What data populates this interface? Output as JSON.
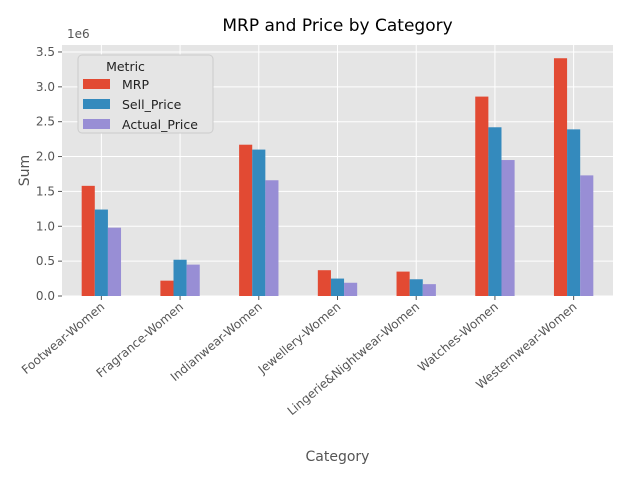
{
  "chart_data": {
    "type": "bar",
    "title": "MRP and Price by Category",
    "xlabel": "Category",
    "ylabel": "Sum",
    "y_multiplier_label": "1e6",
    "y_scale": 1000000,
    "ylim": [
      0,
      3.6
    ],
    "yticks": [
      0.0,
      0.5,
      1.0,
      1.5,
      2.0,
      2.5,
      3.0,
      3.5
    ],
    "ytick_labels": [
      "0.0",
      "0.5",
      "1.0",
      "1.5",
      "2.0",
      "2.5",
      "3.0",
      "3.5"
    ],
    "grid": true,
    "legend_title": "Metric",
    "legend_position": "upper-left",
    "categories": [
      "Footwear-Women",
      "Fragrance-Women",
      "Indianwear-Women",
      "Jewellery-Women",
      "Lingerie&Nightwear-Women",
      "Watches-Women",
      "Westernwear-Women"
    ],
    "series": [
      {
        "name": "MRP",
        "color": "#E24A33",
        "values": [
          1.58,
          0.22,
          2.17,
          0.37,
          0.35,
          2.86,
          3.41
        ]
      },
      {
        "name": "Sell_Price",
        "color": "#348ABD",
        "values": [
          1.24,
          0.52,
          2.1,
          0.25,
          0.24,
          2.42,
          2.39
        ]
      },
      {
        "name": "Actual_Price",
        "color": "#988ED5",
        "values": [
          0.98,
          0.45,
          1.66,
          0.19,
          0.17,
          1.95,
          1.73
        ]
      }
    ]
  }
}
